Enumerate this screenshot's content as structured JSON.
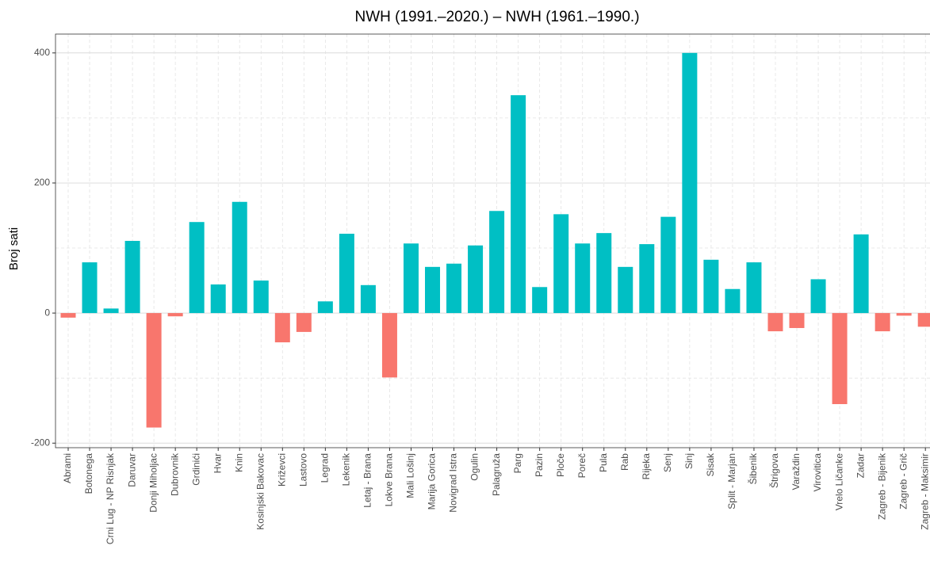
{
  "chart_data": {
    "type": "bar",
    "title": "NWH (1991.–2020.) – NWH (1961.–1990.)",
    "y_label": "Broj sati",
    "categories": [
      "Abrami",
      "Botonega",
      "Crni Lug - NP Risnjak",
      "Daruvar",
      "Donji Miholjac",
      "Dubrovnik",
      "Grdinići",
      "Hvar",
      "Knin",
      "Kosinjski Bakovac",
      "Križevci",
      "Lastovo",
      "Legrad",
      "Lekenik",
      "Letaj - Brana",
      "Lokve Brana",
      "Mali Lošinj",
      "Marija Gorica",
      "Novigrad Istra",
      "Ogulin",
      "Palagruža",
      "Parg",
      "Pazin",
      "Ploče",
      "Poreč",
      "Pula",
      "Rab",
      "Rijeka",
      "Senj",
      "Sinj",
      "Sisak",
      "Split - Marjan",
      "Šibenik",
      "Štrigova",
      "Varaždin",
      "Virovitica",
      "Vrelo Ličanke",
      "Zadar",
      "Zagreb - Bijenik",
      "Zagreb - Grič",
      "Zagreb - Maksimir"
    ],
    "values": [
      -7,
      78,
      7,
      111,
      -176,
      -5,
      140,
      44,
      171,
      50,
      -45,
      -29,
      18,
      122,
      43,
      -99,
      107,
      71,
      76,
      104,
      157,
      335,
      40,
      152,
      107,
      123,
      71,
      106,
      148,
      400,
      82,
      37,
      78,
      -28,
      -23,
      52,
      -140,
      121,
      -28,
      -4,
      -21
    ],
    "positive_color": "#00BFC4",
    "negative_color": "#F8766D",
    "ylim": [
      -207,
      429
    ],
    "yticks": [
      -200,
      0,
      200,
      400
    ],
    "yminorticks": [
      -100,
      100,
      300
    ],
    "grid": true
  }
}
